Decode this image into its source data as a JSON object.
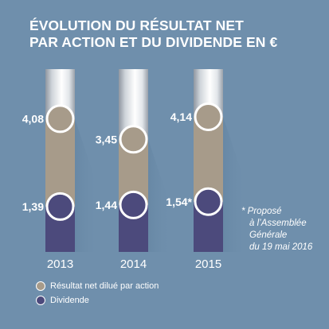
{
  "title": {
    "line1": "ÉVOLUTION DU RÉSULTAT NET",
    "line2": "PAR ACTION ET DU DIVIDENDE EN €"
  },
  "note": {
    "line1": "* Proposé",
    "line2": "à l’Assemblée",
    "line3": "Générale",
    "line4": "du 19 mai 2016"
  },
  "colors": {
    "background": "#6f8fac",
    "eps": "#a79b8a",
    "dividend": "#4c4a7c",
    "marker": "#ffffff"
  },
  "chart_data": {
    "type": "bar",
    "categories": [
      "2013",
      "2014",
      "2015"
    ],
    "series": [
      {
        "name": "Résultat net dilué par action",
        "values": [
          4.08,
          3.45,
          4.14
        ],
        "labels": [
          "4,08",
          "3,45",
          "4,14"
        ],
        "color": "#a79b8a"
      },
      {
        "name": "Dividende",
        "values": [
          1.39,
          1.44,
          1.54
        ],
        "labels": [
          "1,39",
          "1,44",
          "1,54*"
        ],
        "color": "#4c4a7c"
      }
    ],
    "legend_position": "bottom-left",
    "grid": false
  }
}
